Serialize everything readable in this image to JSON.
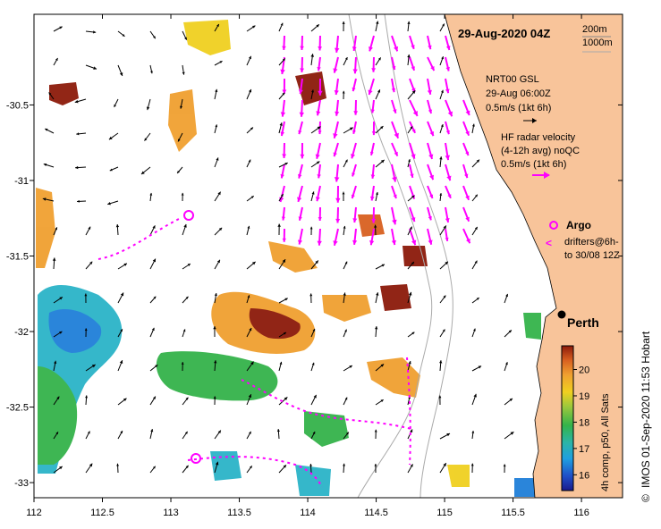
{
  "title": "29-Aug-2020 04Z",
  "depth_contours": [
    "200m",
    "1000m"
  ],
  "wind_legend": {
    "source": "NRT00 GSL",
    "time": "29-Aug 06:00Z",
    "scale": "0.5m/s (1kt 6h)"
  },
  "hf_radar_legend": {
    "line1": "HF radar velocity",
    "line2": "(4-12h avg) noQC",
    "scale": "0.5m/s (1kt 6h)"
  },
  "argo_label": "Argo",
  "drifters_label_1": "drifters@6h-",
  "drifters_label_2": "to 30/08 12Z",
  "city_label": "Perth",
  "credit": "IMOS 01-Sep-2020 11:53 Hobart",
  "copyright": "©",
  "colorbar": {
    "ticks": [
      "16",
      "17",
      "18",
      "19",
      "20"
    ],
    "label": "4h comp, p50, All Sats"
  },
  "x_axis": {
    "ticks": [
      "112",
      "112.5",
      "113",
      "113.5",
      "114",
      "114.5",
      "115",
      "115.5",
      "116"
    ],
    "values": [
      112,
      112.5,
      113,
      113.5,
      114,
      114.5,
      115,
      115.5,
      116
    ],
    "range": [
      112,
      116.3
    ]
  },
  "y_axis": {
    "ticks": [
      "-30.5",
      "-31",
      "-31.5",
      "-32",
      "-32.5",
      "-33"
    ],
    "values": [
      -30.5,
      -31,
      -31.5,
      -32,
      -32.5,
      -33
    ],
    "range": [
      -33.1,
      -29.9
    ]
  },
  "colors": {
    "land": "#f8c49a",
    "hf_radar": "#ff00ff",
    "contour": "#aaaaaa",
    "colorbar": [
      "#1a1a8c",
      "#1f7fd9",
      "#2bb4c8",
      "#34b34a",
      "#8cc83c",
      "#f0d020",
      "#f0a030",
      "#d86020",
      "#8c1a0a"
    ]
  }
}
